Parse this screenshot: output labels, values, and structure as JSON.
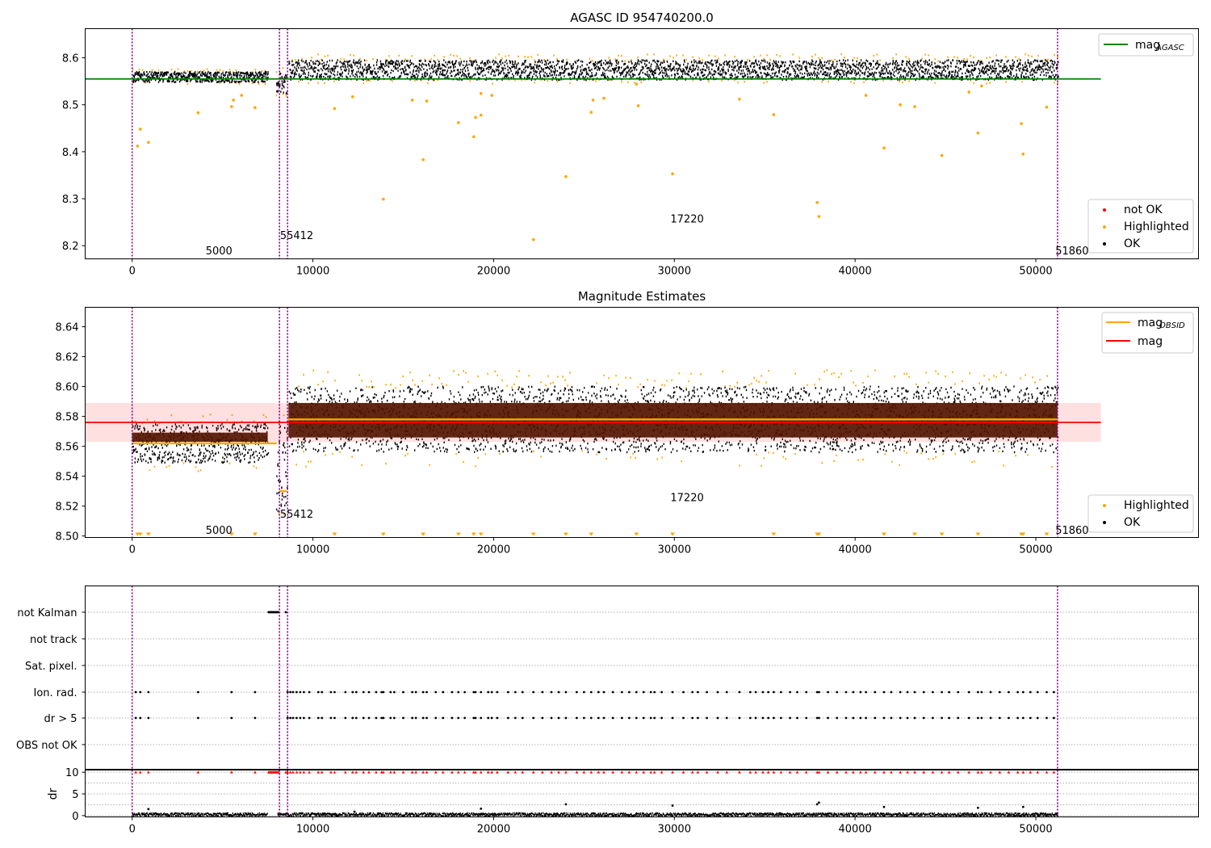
{
  "chart_data": [
    {
      "type": "scatter",
      "title": "AGASC ID 954740200.0",
      "xlim": [
        -2600,
        59000
      ],
      "ylim": [
        8.172,
        8.662
      ],
      "yticks": [
        "8.2",
        "8.3",
        "8.4",
        "8.5",
        "8.6"
      ],
      "ytick_values": [
        8.2,
        8.3,
        8.4,
        8.5,
        8.6
      ],
      "xticks": [
        "0",
        "10000",
        "20000",
        "30000",
        "40000",
        "50000"
      ],
      "xtick_values": [
        0,
        10000,
        20000,
        30000,
        40000,
        50000
      ],
      "vlines": [
        0,
        8150,
        8600,
        51200
      ],
      "reference_lines": [
        {
          "name": "mag_AGASC",
          "legend_label": "mag",
          "legend_sub": "AGASC",
          "value": 8.555,
          "color": "#008000",
          "x_range": [
            -2600,
            53600
          ]
        }
      ],
      "legend_top": {
        "position": "upper right"
      },
      "legend_bottom": {
        "position": "lower right",
        "entries": [
          {
            "label": "not OK",
            "color": "#ff0000"
          },
          {
            "label": "Highlighted",
            "color": "#ffa500"
          },
          {
            "label": "OK",
            "color": "#000000"
          }
        ]
      },
      "segments": [
        {
          "x_start": 0,
          "x_end": 7500,
          "y_center": 8.559,
          "y_half": 0.011
        },
        {
          "x_start": 7950,
          "x_end": 8500,
          "y_center": 8.545,
          "y_half": 0.022
        },
        {
          "x_start": 8650,
          "x_end": 51200,
          "y_center": 8.574,
          "y_half": 0.021
        }
      ],
      "highlighted_points": [
        {
          "x": 300,
          "y": 8.412
        },
        {
          "x": 450,
          "y": 8.448
        },
        {
          "x": 900,
          "y": 8.42
        },
        {
          "x": 3650,
          "y": 8.483
        },
        {
          "x": 5500,
          "y": 8.496
        },
        {
          "x": 5600,
          "y": 8.51
        },
        {
          "x": 6800,
          "y": 8.494
        },
        {
          "x": 6050,
          "y": 8.52
        },
        {
          "x": 11200,
          "y": 8.492
        },
        {
          "x": 12200,
          "y": 8.517
        },
        {
          "x": 13900,
          "y": 8.299
        },
        {
          "x": 15500,
          "y": 8.51
        },
        {
          "x": 16100,
          "y": 8.383
        },
        {
          "x": 16300,
          "y": 8.508
        },
        {
          "x": 18050,
          "y": 8.462
        },
        {
          "x": 18900,
          "y": 8.432
        },
        {
          "x": 19000,
          "y": 8.473
        },
        {
          "x": 19300,
          "y": 8.478
        },
        {
          "x": 19300,
          "y": 8.524
        },
        {
          "x": 19900,
          "y": 8.52
        },
        {
          "x": 22200,
          "y": 8.213
        },
        {
          "x": 24000,
          "y": 8.347
        },
        {
          "x": 25400,
          "y": 8.484
        },
        {
          "x": 25500,
          "y": 8.51
        },
        {
          "x": 26100,
          "y": 8.514
        },
        {
          "x": 27900,
          "y": 8.544
        },
        {
          "x": 28000,
          "y": 8.498
        },
        {
          "x": 29900,
          "y": 8.353
        },
        {
          "x": 33600,
          "y": 8.512
        },
        {
          "x": 35500,
          "y": 8.479
        },
        {
          "x": 37900,
          "y": 8.292
        },
        {
          "x": 38000,
          "y": 8.262
        },
        {
          "x": 40600,
          "y": 8.52
        },
        {
          "x": 41600,
          "y": 8.408
        },
        {
          "x": 42500,
          "y": 8.5
        },
        {
          "x": 43300,
          "y": 8.496
        },
        {
          "x": 44800,
          "y": 8.392
        },
        {
          "x": 46300,
          "y": 8.527
        },
        {
          "x": 46800,
          "y": 8.44
        },
        {
          "x": 47000,
          "y": 8.54
        },
        {
          "x": 49200,
          "y": 8.46
        },
        {
          "x": 49300,
          "y": 8.395
        },
        {
          "x": 50600,
          "y": 8.495
        }
      ],
      "annotations": [
        {
          "text": "5000",
          "x": 4000,
          "y": 8.19
        },
        {
          "text": "55412",
          "x": 8300,
          "y": 8.223
        },
        {
          "text": "17220",
          "x": 29900,
          "y": 8.258
        },
        {
          "text": "51860",
          "x": 51200,
          "y": 8.19
        }
      ]
    },
    {
      "type": "scatter",
      "title": "Magnitude Estimates",
      "xlim": [
        -2600,
        59000
      ],
      "ylim": [
        8.499,
        8.653
      ],
      "yticks": [
        "8.50",
        "8.52",
        "8.54",
        "8.56",
        "8.58",
        "8.60",
        "8.62",
        "8.64"
      ],
      "ytick_values": [
        8.5,
        8.52,
        8.54,
        8.56,
        8.58,
        8.6,
        8.62,
        8.64
      ],
      "xticks": [
        "0",
        "10000",
        "20000",
        "30000",
        "40000",
        "50000"
      ],
      "xtick_values": [
        0,
        10000,
        20000,
        30000,
        40000,
        50000
      ],
      "vlines": [
        0,
        8150,
        8600,
        51200
      ],
      "mag_band": {
        "center": 8.576,
        "lo": 8.563,
        "hi": 8.589,
        "x_range": [
          -2600,
          53600
        ],
        "color": "#ff0000"
      },
      "obsid_lines": [
        {
          "x_start": 0,
          "x_end": 8000,
          "y": 8.562
        },
        {
          "x_start": 8150,
          "x_end": 8550,
          "y": 8.53
        },
        {
          "x_start": 8650,
          "x_end": 51200,
          "y": 8.578
        }
      ],
      "legend_top": {
        "position": "upper right",
        "entries": [
          {
            "label": "mag",
            "sub": "OBSID",
            "color": "#ffa500"
          },
          {
            "label": "mag",
            "sub": "",
            "color": "#ff0000"
          }
        ]
      },
      "legend_bottom": {
        "position": "lower right",
        "entries": [
          {
            "label": "Highlighted",
            "color": "#ffa500"
          },
          {
            "label": "OK",
            "color": "#000000"
          }
        ]
      },
      "segments": [
        {
          "x_start": 0,
          "x_end": 7500,
          "y_center": 8.562,
          "y_half": 0.013
        },
        {
          "x_start": 7950,
          "x_end": 8550,
          "y_center": 8.545,
          "y_half": 0.03
        },
        {
          "x_start": 8650,
          "x_end": 51200,
          "y_center": 8.578,
          "y_half": 0.022
        }
      ],
      "offscale_markers_x": [
        300,
        450,
        900,
        5500,
        6800,
        11200,
        13900,
        16100,
        18050,
        18900,
        19300,
        22200,
        24000,
        25400,
        27900,
        29900,
        35500,
        37900,
        38000,
        41600,
        43300,
        44800,
        46800,
        49200,
        49300,
        50600
      ],
      "annotations": [
        {
          "text": "5000",
          "x": 4000,
          "y": 8.504
        },
        {
          "text": "55412",
          "x": 8300,
          "y": 8.515
        },
        {
          "text": "17220",
          "x": 29900,
          "y": 8.526
        },
        {
          "text": "51860",
          "x": 51200,
          "y": 8.504
        }
      ]
    },
    {
      "type": "scatter",
      "title": "",
      "flags": [
        "not Kalman",
        "not track",
        "Sat. pixel.",
        "Ion. rad.",
        "dr > 5",
        "OBS not OK"
      ],
      "flag_events": {
        "not Kalman": [
          [
            7550,
            7600,
            7650,
            7700,
            7750,
            7800,
            7850,
            7900,
            7950,
            8000,
            8050,
            8100,
            8500
          ]
        ],
        "Ion. rad.": [
          [
            200,
            450,
            900,
            3650,
            5500,
            6800,
            8600,
            8750,
            8900,
            9100,
            9300,
            9500,
            9800,
            10300,
            10500,
            11000,
            11200,
            11800,
            12200,
            12400,
            12800,
            13100,
            13500,
            13800,
            13900,
            14300,
            14500,
            15000,
            15500,
            15700,
            16100,
            16300,
            16800,
            17200,
            17700,
            18050,
            18400,
            18900,
            19000,
            19300,
            19700,
            19900,
            20200,
            20800,
            21200,
            21600,
            22200,
            22700,
            23200,
            23600,
            24000,
            24600,
            25000,
            25400,
            25800,
            26100,
            26600,
            27100,
            27500,
            27900,
            28300,
            28700,
            28900,
            29300,
            29900,
            30500,
            31000,
            31300,
            31800,
            32400,
            32900,
            33600,
            34200,
            34500,
            34900,
            35200,
            35500,
            35900,
            36400,
            36800,
            37300,
            37900,
            38000,
            38500,
            39000,
            39500,
            39900,
            40300,
            40600,
            41100,
            41600,
            42000,
            42500,
            42900,
            43300,
            43800,
            44300,
            44800,
            45200,
            45700,
            46300,
            46800,
            47000,
            47500,
            48000,
            48500,
            49000,
            49300,
            49700,
            50100,
            50600,
            51000
          ]
        ],
        "dr > 5": [
          [
            200,
            450,
            900,
            3650,
            5500,
            6800,
            8600,
            8750,
            8900,
            9100,
            9300,
            9500,
            9800,
            10300,
            10500,
            11000,
            11200,
            11800,
            12200,
            12400,
            12800,
            13100,
            13500,
            13800,
            13900,
            14300,
            14500,
            15000,
            15500,
            15700,
            16100,
            16300,
            16800,
            17200,
            17700,
            18050,
            18400,
            18900,
            19000,
            19300,
            19700,
            19900,
            20200,
            20800,
            21200,
            21600,
            22200,
            22700,
            23200,
            23600,
            24000,
            24600,
            25000,
            25400,
            25800,
            26100,
            26600,
            27100,
            27500,
            27900,
            28300,
            28700,
            28900,
            29300,
            29900,
            30500,
            31000,
            31300,
            31800,
            32400,
            32900,
            33600,
            34200,
            34500,
            34900,
            35200,
            35500,
            35900,
            36400,
            36800,
            37300,
            37900,
            38000,
            38500,
            39000,
            39500,
            39900,
            40300,
            40600,
            41100,
            41600,
            42000,
            42500,
            42900,
            43300,
            43800,
            44300,
            44800,
            45200,
            45700,
            46300,
            46800,
            47000,
            47500,
            48000,
            48500,
            49000,
            49300,
            49700,
            50100,
            50600,
            51000
          ]
        ]
      },
      "vlines": [
        0,
        8150,
        8600,
        51200
      ],
      "xlim": [
        -2600,
        59000
      ]
    },
    {
      "type": "scatter",
      "title": "",
      "ylabel": "dr",
      "ylim": [
        -0.3,
        10.5
      ],
      "yticks": [
        "0",
        "5",
        "10"
      ],
      "ytick_values": [
        0,
        5,
        10
      ],
      "xticks": [
        "0",
        "10000",
        "20000",
        "30000",
        "40000",
        "50000"
      ],
      "xtick_values": [
        0,
        10000,
        20000,
        30000,
        40000,
        50000
      ],
      "xlim": [
        -2600,
        59000
      ],
      "vlines": [
        0,
        8150,
        8600,
        51200
      ],
      "capped_value": 10,
      "baseline": {
        "x_start": 0,
        "x_end": 51200,
        "y_center": 0.25,
        "y_half": 0.35
      },
      "outliers": [
        {
          "x": 900,
          "y": 1.5
        },
        {
          "x": 12300,
          "y": 0.9
        },
        {
          "x": 19300,
          "y": 1.6
        },
        {
          "x": 24000,
          "y": 2.6
        },
        {
          "x": 29900,
          "y": 2.3
        },
        {
          "x": 37900,
          "y": 2.6
        },
        {
          "x": 38000,
          "y": 3.0
        },
        {
          "x": 41600,
          "y": 2.0
        },
        {
          "x": 46800,
          "y": 1.8
        },
        {
          "x": 49300,
          "y": 2.0
        }
      ]
    }
  ]
}
